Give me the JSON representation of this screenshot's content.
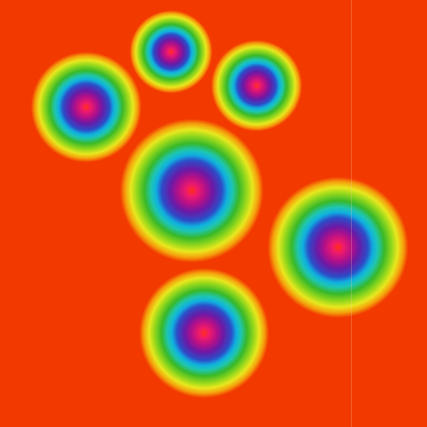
{
  "palette": {
    "background": "#f23a00",
    "ring_stops": [
      "#ff2e1c",
      "#f01a6a",
      "#b0108a",
      "#6a1aa6",
      "#2c4cc8",
      "#10b0e0",
      "#1ec6b0",
      "#38b82a",
      "#8ed61c",
      "#e8e81e",
      "#f5a00c",
      "#f23a00"
    ]
  },
  "blob_count": 6
}
